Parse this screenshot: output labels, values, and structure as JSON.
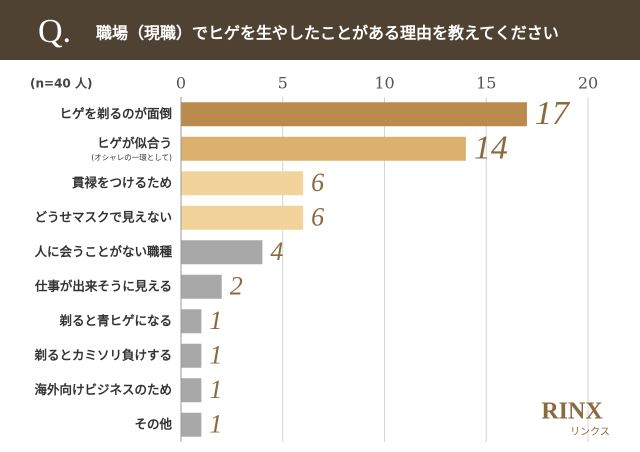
{
  "chart_data": {
    "type": "hbar",
    "question_label": "Q.",
    "title": "職場（現職）でヒゲを生やしたことがある理由を教えてください",
    "sample_note": "(n=40 人)",
    "categories": [
      "ヒゲを剃るのが面倒",
      "ヒゲが似合う",
      "貫禄をつけるため",
      "どうせマスクで見えない",
      "人に会うことがない職種",
      "仕事が出来そうに見える",
      "剃ると青ヒゲになる",
      "剃るとカミソリ負けする",
      "海外向けビジネスのため",
      "その他"
    ],
    "category_notes": [
      null,
      "(オシャレの一環として)",
      null,
      null,
      null,
      null,
      null,
      null,
      null,
      null
    ],
    "values": [
      17,
      14,
      6,
      6,
      4,
      2,
      1,
      1,
      1,
      1
    ],
    "colors": [
      "#b98b4d",
      "#dcb06f",
      "#f2d39c",
      "#f2d39c",
      "#a8a8a8",
      "#a8a8a8",
      "#a8a8a8",
      "#a8a8a8",
      "#a8a8a8",
      "#a8a8a8"
    ],
    "xlim": [
      0,
      20
    ],
    "xticks": [
      0,
      5,
      10,
      15,
      20
    ],
    "grid": true
  },
  "logo": {
    "text": "RINX",
    "subtext": "リンクス"
  }
}
